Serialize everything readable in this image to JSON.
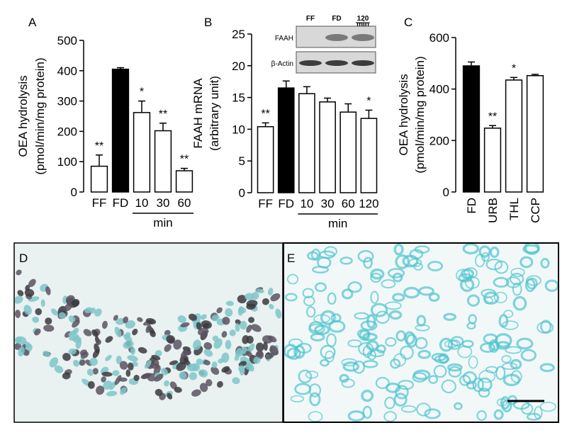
{
  "chart_data": [
    {
      "type": "bar",
      "panel_label": "A",
      "ylabel": [
        "OEA hydrolysis",
        "(pmol/min/mg protein)"
      ],
      "categories": [
        "FF",
        "FD",
        "10",
        "30",
        "60"
      ],
      "values": [
        85,
        405,
        262,
        202,
        70
      ],
      "errors": [
        37,
        5,
        38,
        25,
        8
      ],
      "colors": [
        "#ffffff",
        "#000000",
        "#ffffff",
        "#ffffff",
        "#ffffff"
      ],
      "annotations": [
        "**",
        null,
        "*",
        "**",
        "**"
      ],
      "group": {
        "label": "min",
        "first": 2,
        "last": 4
      },
      "ylim": [
        0,
        500
      ],
      "yticks": [
        0,
        100,
        200,
        300,
        400,
        500
      ]
    },
    {
      "type": "bar",
      "panel_label": "B",
      "ylabel": [
        "FAAH mRNA",
        "(arbitrary unit)"
      ],
      "categories": [
        "FF",
        "FD",
        "10",
        "30",
        "60",
        "120"
      ],
      "values": [
        10.4,
        16.5,
        15.6,
        14.3,
        12.7,
        11.7
      ],
      "errors": [
        0.6,
        1.1,
        1.1,
        0.6,
        1.3,
        1.3
      ],
      "colors": [
        "#ffffff",
        "#000000",
        "#ffffff",
        "#ffffff",
        "#ffffff",
        "#ffffff"
      ],
      "annotations": [
        "**",
        null,
        null,
        null,
        null,
        "*"
      ],
      "group": {
        "label": "min",
        "first": 2,
        "last": 5
      },
      "inset": {
        "columns": [
          "FF",
          "FD",
          "120"
        ],
        "column_unit": "min",
        "rows": [
          "FAAH",
          "β-Actin"
        ]
      },
      "ylim": [
        0,
        25
      ],
      "yticks": [
        0,
        5,
        10,
        15,
        20,
        25
      ]
    },
    {
      "type": "bar",
      "panel_label": "C",
      "ylabel": [
        "OEA hydrolysis",
        "(pmol/min/mg protein)"
      ],
      "categories": [
        "FD",
        "URB",
        "THL",
        "CCP"
      ],
      "values": [
        490,
        248,
        435,
        452
      ],
      "errors": [
        15,
        10,
        10,
        5
      ],
      "colors": [
        "#000000",
        "#ffffff",
        "#ffffff",
        "#ffffff"
      ],
      "annotations": [
        null,
        "**",
        "*",
        null
      ],
      "rotate_labels": true,
      "ylim": [
        0,
        600
      ],
      "yticks": [
        0,
        200,
        400,
        600
      ]
    }
  ],
  "image_panels": [
    {
      "label": "D"
    },
    {
      "label": "E"
    }
  ]
}
